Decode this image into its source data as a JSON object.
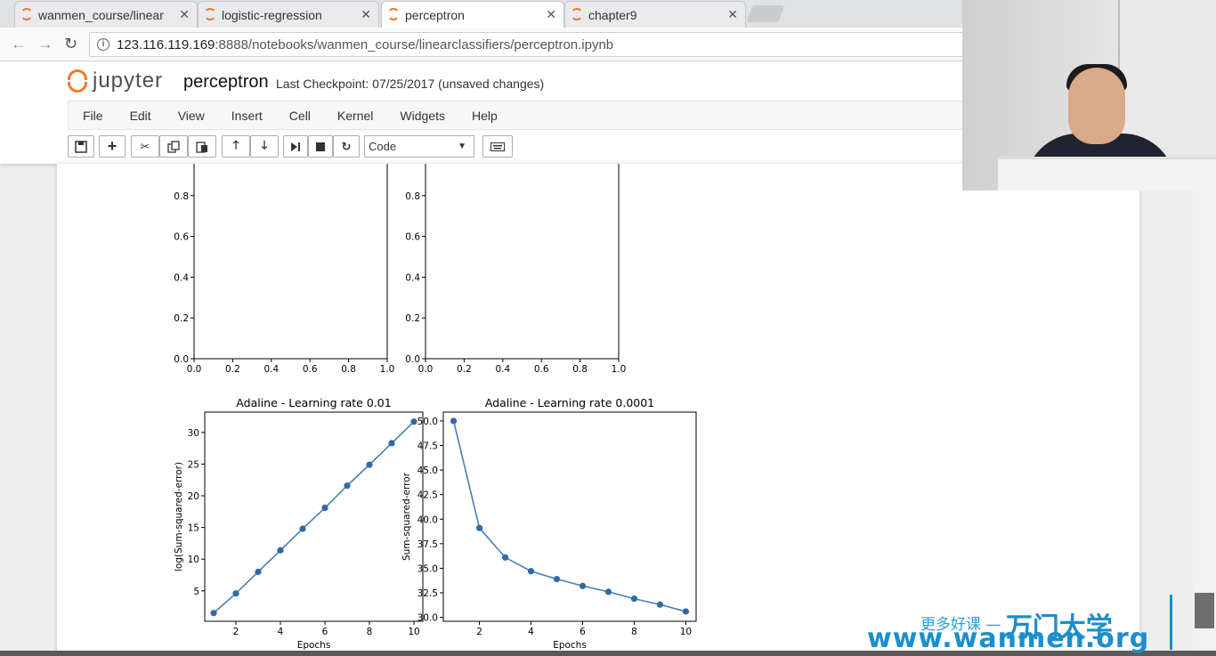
{
  "tabs": [
    {
      "label": "wanmen_course/linear",
      "active": false
    },
    {
      "label": "logistic-regression",
      "active": false
    },
    {
      "label": "perceptron",
      "active": true
    },
    {
      "label": "chapter9",
      "active": false
    }
  ],
  "address": {
    "host": "123.116.119.169",
    "rest": ":8888/notebooks/wanmen_course/linearclassifiers/perceptron.ipynb"
  },
  "jupyter": {
    "logo_text": "jupyter",
    "notebook_title": "perceptron",
    "checkpoint": "Last Checkpoint: 07/25/2017 (unsaved changes)"
  },
  "menu": [
    "File",
    "Edit",
    "View",
    "Insert",
    "Cell",
    "Kernel",
    "Widgets",
    "Help"
  ],
  "toolbar": {
    "cell_type": "Code",
    "icons": [
      "save-icon",
      "plus-icon",
      "cut-icon",
      "copy-icon",
      "paste-icon",
      "arrow-up-icon",
      "arrow-down-icon",
      "run-icon",
      "stop-icon",
      "restart-icon",
      "keyboard-icon"
    ]
  },
  "watermark": {
    "line1": "更多好课 —",
    "brand": "万门大学",
    "line2": "www.wanmen.org"
  },
  "chart_data": [
    {
      "type": "line",
      "title": "",
      "xlabel": "",
      "ylabel": "",
      "xlim": [
        0.0,
        1.0
      ],
      "ylim": [
        0.0,
        1.0
      ],
      "xticks": [
        "0.0",
        "0.2",
        "0.4",
        "0.6",
        "0.8",
        "1.0"
      ],
      "yticks": [
        "0.0",
        "0.2",
        "0.4",
        "0.6",
        "0.8"
      ],
      "series": []
    },
    {
      "type": "line",
      "title": "",
      "xlabel": "",
      "ylabel": "",
      "xlim": [
        0.0,
        1.0
      ],
      "ylim": [
        0.0,
        1.0
      ],
      "xticks": [
        "0.0",
        "0.2",
        "0.4",
        "0.6",
        "0.8",
        "1.0"
      ],
      "yticks": [
        "0.0",
        "0.2",
        "0.4",
        "0.6",
        "0.8"
      ],
      "series": []
    },
    {
      "type": "line",
      "title": "Adaline - Learning rate 0.01",
      "xlabel": "Epochs",
      "ylabel": "log(Sum-squared-error)",
      "xlim": [
        0.6,
        10.4
      ],
      "ylim": [
        0.2,
        33.2
      ],
      "xticks": [
        2,
        4,
        6,
        8,
        10
      ],
      "yticks": [
        5,
        10,
        15,
        20,
        25,
        30
      ],
      "x": [
        1,
        2,
        3,
        4,
        5,
        6,
        7,
        8,
        9,
        10
      ],
      "values": [
        1.5,
        4.6,
        8.0,
        11.4,
        14.8,
        18.1,
        21.6,
        24.9,
        28.3,
        31.7
      ]
    },
    {
      "type": "line",
      "title": "Adaline - Learning rate 0.0001",
      "xlabel": "Epochs",
      "ylabel": "Sum-squared-error",
      "xlim": [
        0.6,
        10.4
      ],
      "ylim": [
        29.6,
        50.9
      ],
      "xticks": [
        2,
        4,
        6,
        8,
        10
      ],
      "yticks": [
        "30.0",
        "32.5",
        "35.0",
        "37.5",
        "40.0",
        "42.5",
        "45.0",
        "47.5",
        "50.0"
      ],
      "x": [
        1,
        2,
        3,
        4,
        5,
        6,
        7,
        8,
        9,
        10
      ],
      "values": [
        50.0,
        39.1,
        36.1,
        34.7,
        33.9,
        33.2,
        32.6,
        31.9,
        31.3,
        30.6
      ]
    }
  ]
}
